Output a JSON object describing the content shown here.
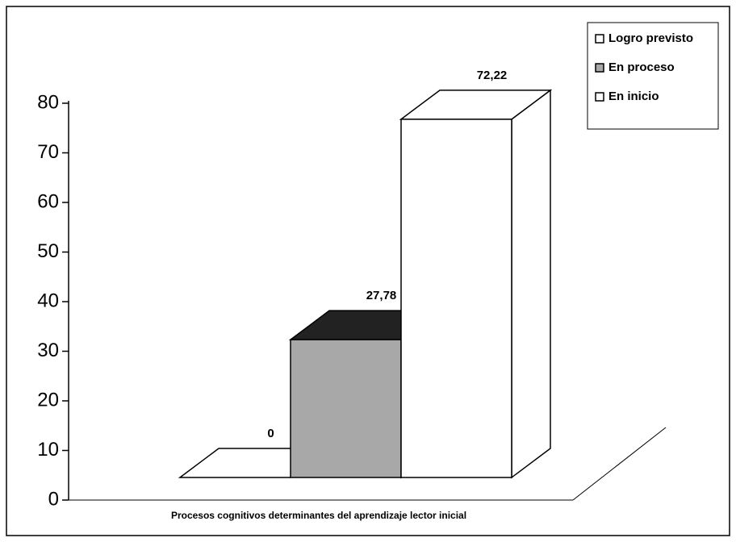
{
  "chart_data": {
    "type": "bar3d",
    "x_label": "Procesos cognitivos determinantes del aprendizaje lector inicial",
    "series": [
      {
        "name": "Logro previsto",
        "color": "#ffffff",
        "values": [
          0
        ],
        "value_labels": [
          "0"
        ]
      },
      {
        "name": "En proceso",
        "color": "#a8a8a8",
        "values": [
          27.78
        ],
        "value_labels": [
          "27,78"
        ]
      },
      {
        "name": "En inicio",
        "color": "#ffffff",
        "values": [
          72.22
        ],
        "value_labels": [
          "72,22"
        ]
      }
    ],
    "ylim": [
      0,
      80
    ],
    "yticks": [
      0,
      10,
      20,
      30,
      40,
      50,
      60,
      70,
      80
    ],
    "legend": "upper right"
  }
}
